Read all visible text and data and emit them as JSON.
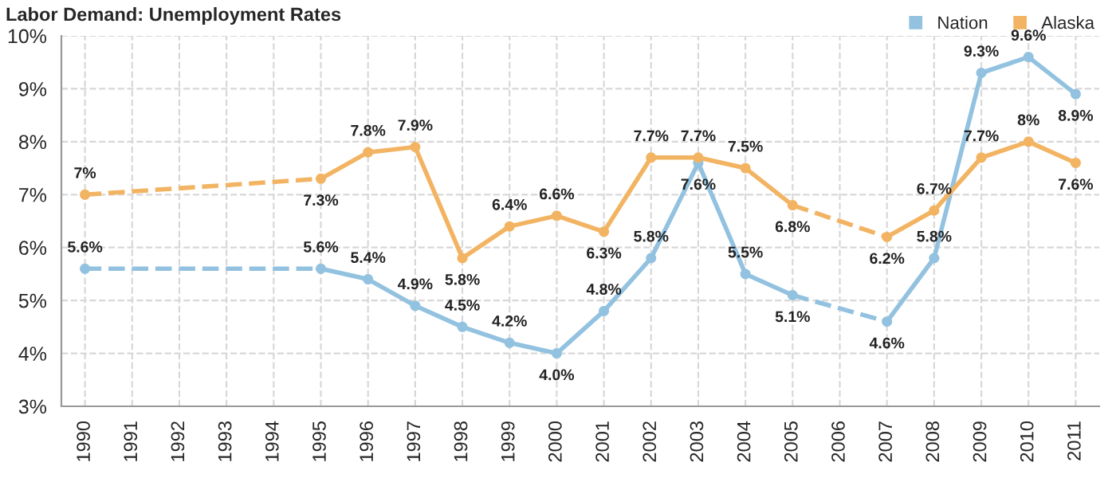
{
  "chart_data": {
    "type": "line",
    "title": "Labor Demand: Unemployment Rates",
    "categories": [
      "1990",
      "1991",
      "1992",
      "1993",
      "1994",
      "1995",
      "1996",
      "1997",
      "1998",
      "1999",
      "2000",
      "2001",
      "2002",
      "2003",
      "2004",
      "2005",
      "2006",
      "2007",
      "2008",
      "2009",
      "2010",
      "2011"
    ],
    "series": [
      {
        "name": "Nation",
        "color": "#92c2e0",
        "values": [
          5.6,
          null,
          null,
          null,
          null,
          5.6,
          5.4,
          4.9,
          4.5,
          4.2,
          4.0,
          4.8,
          5.8,
          7.6,
          5.5,
          5.1,
          null,
          4.6,
          5.8,
          9.3,
          9.6,
          8.9
        ],
        "value_labels": [
          "5.6%",
          null,
          null,
          null,
          null,
          "5.6%",
          "5.4%",
          "4.9%",
          "4.5%",
          "4.2%",
          "4.0%",
          "4.8%",
          "5.8%",
          "7.6%",
          "5.5%",
          "5.1%",
          null,
          "4.6%",
          "5.8%",
          "9.3%",
          "9.6%",
          "8.9%"
        ]
      },
      {
        "name": "Alaska",
        "color": "#f2b462",
        "values": [
          7,
          null,
          null,
          null,
          null,
          7.3,
          7.8,
          7.9,
          5.8,
          6.4,
          6.6,
          6.3,
          7.7,
          7.7,
          7.5,
          6.8,
          null,
          6.2,
          6.7,
          7.7,
          8,
          7.6
        ],
        "value_labels": [
          "7%",
          null,
          null,
          null,
          null,
          "7.3%",
          "7.8%",
          "7.9%",
          "5.8%",
          "6.4%",
          "6.6%",
          "6.3%",
          "7.7%",
          "7.7%",
          "7.5%",
          "6.8%",
          null,
          "6.2%",
          "6.7%",
          "7.7%",
          "8%",
          "7.6%"
        ]
      }
    ],
    "ylim": [
      3,
      10
    ],
    "yticks": [
      {
        "value": 3,
        "label": "3%"
      },
      {
        "value": 4,
        "label": "4%"
      },
      {
        "value": 5,
        "label": "5%"
      },
      {
        "value": 6,
        "label": "6%"
      },
      {
        "value": 7,
        "label": "7%"
      },
      {
        "value": 8,
        "label": "8%"
      },
      {
        "value": 9,
        "label": "9%"
      },
      {
        "value": 10,
        "label": "10%"
      }
    ],
    "grid": true,
    "legend": "top right",
    "marker": "circle",
    "line_style": "solid"
  }
}
